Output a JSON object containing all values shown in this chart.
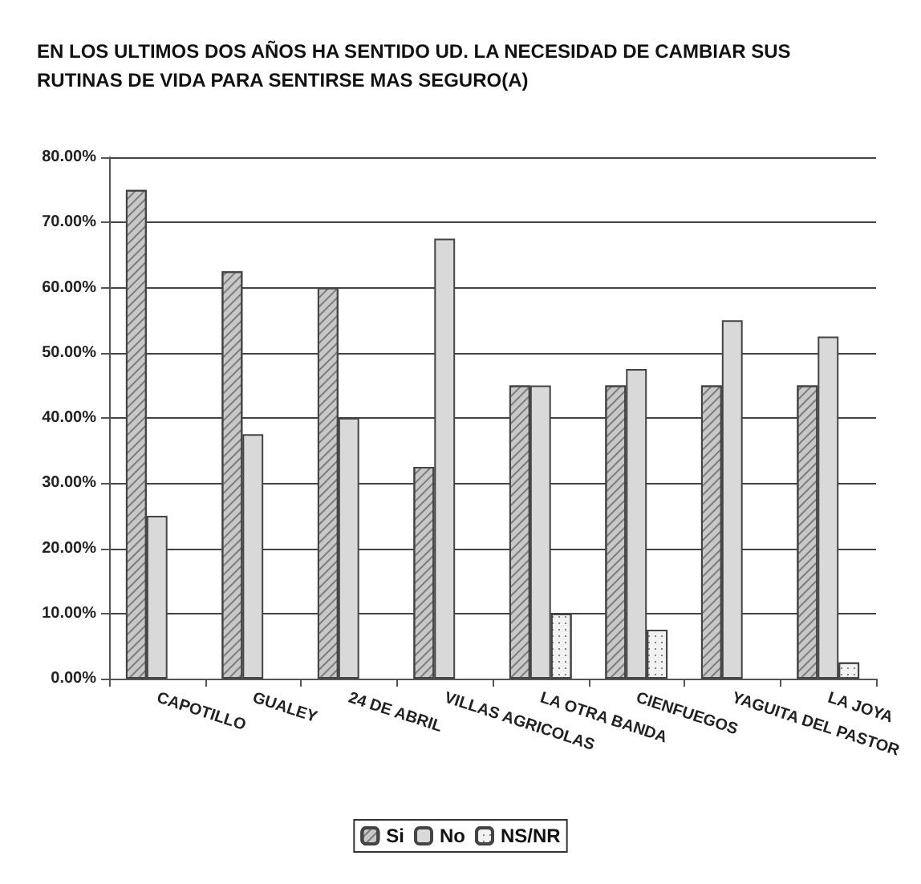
{
  "chart_data": {
    "type": "bar",
    "title": "EN LOS ULTIMOS DOS AÑOS HA SENTIDO UD. LA NECESIDAD DE CAMBIAR SUS\nRUTINAS DE VIDA PARA SENTIRSE MAS SEGURO(A)",
    "categories": [
      "CAPOTILLO",
      "GUALEY",
      "24 DE ABRIL",
      "VILLAS AGRICOLAS",
      "LA OTRA BANDA",
      "CIENFUEGOS",
      "YAGUITA DEL PASTOR",
      "LA JOYA"
    ],
    "series": [
      {
        "name": "Si",
        "color": "#c8c8c8",
        "values": [
          75,
          62.5,
          60,
          32.5,
          45,
          45,
          45,
          45
        ]
      },
      {
        "name": "No",
        "color": "#d9d9d9",
        "values": [
          25,
          37.5,
          40,
          67.5,
          45,
          47.5,
          55,
          52.5
        ]
      },
      {
        "name": "NS/NR",
        "color": "#f2f2f2",
        "values": [
          0,
          0,
          0,
          0,
          10,
          7.5,
          0,
          2.5
        ]
      }
    ],
    "ylim": [
      0,
      80
    ],
    "yticks": [
      {
        "value": 0,
        "label": "0.00%"
      },
      {
        "value": 10,
        "label": "10.00%"
      },
      {
        "value": 20,
        "label": "20.00%"
      },
      {
        "value": 30,
        "label": "30.00%"
      },
      {
        "value": 40,
        "label": "40.00%"
      },
      {
        "value": 50,
        "label": "50.00%"
      },
      {
        "value": 60,
        "label": "60.00%"
      },
      {
        "value": 70,
        "label": "70.00%"
      },
      {
        "value": 80,
        "label": "80.00%"
      }
    ],
    "grid": "y",
    "legend": "bottom"
  }
}
